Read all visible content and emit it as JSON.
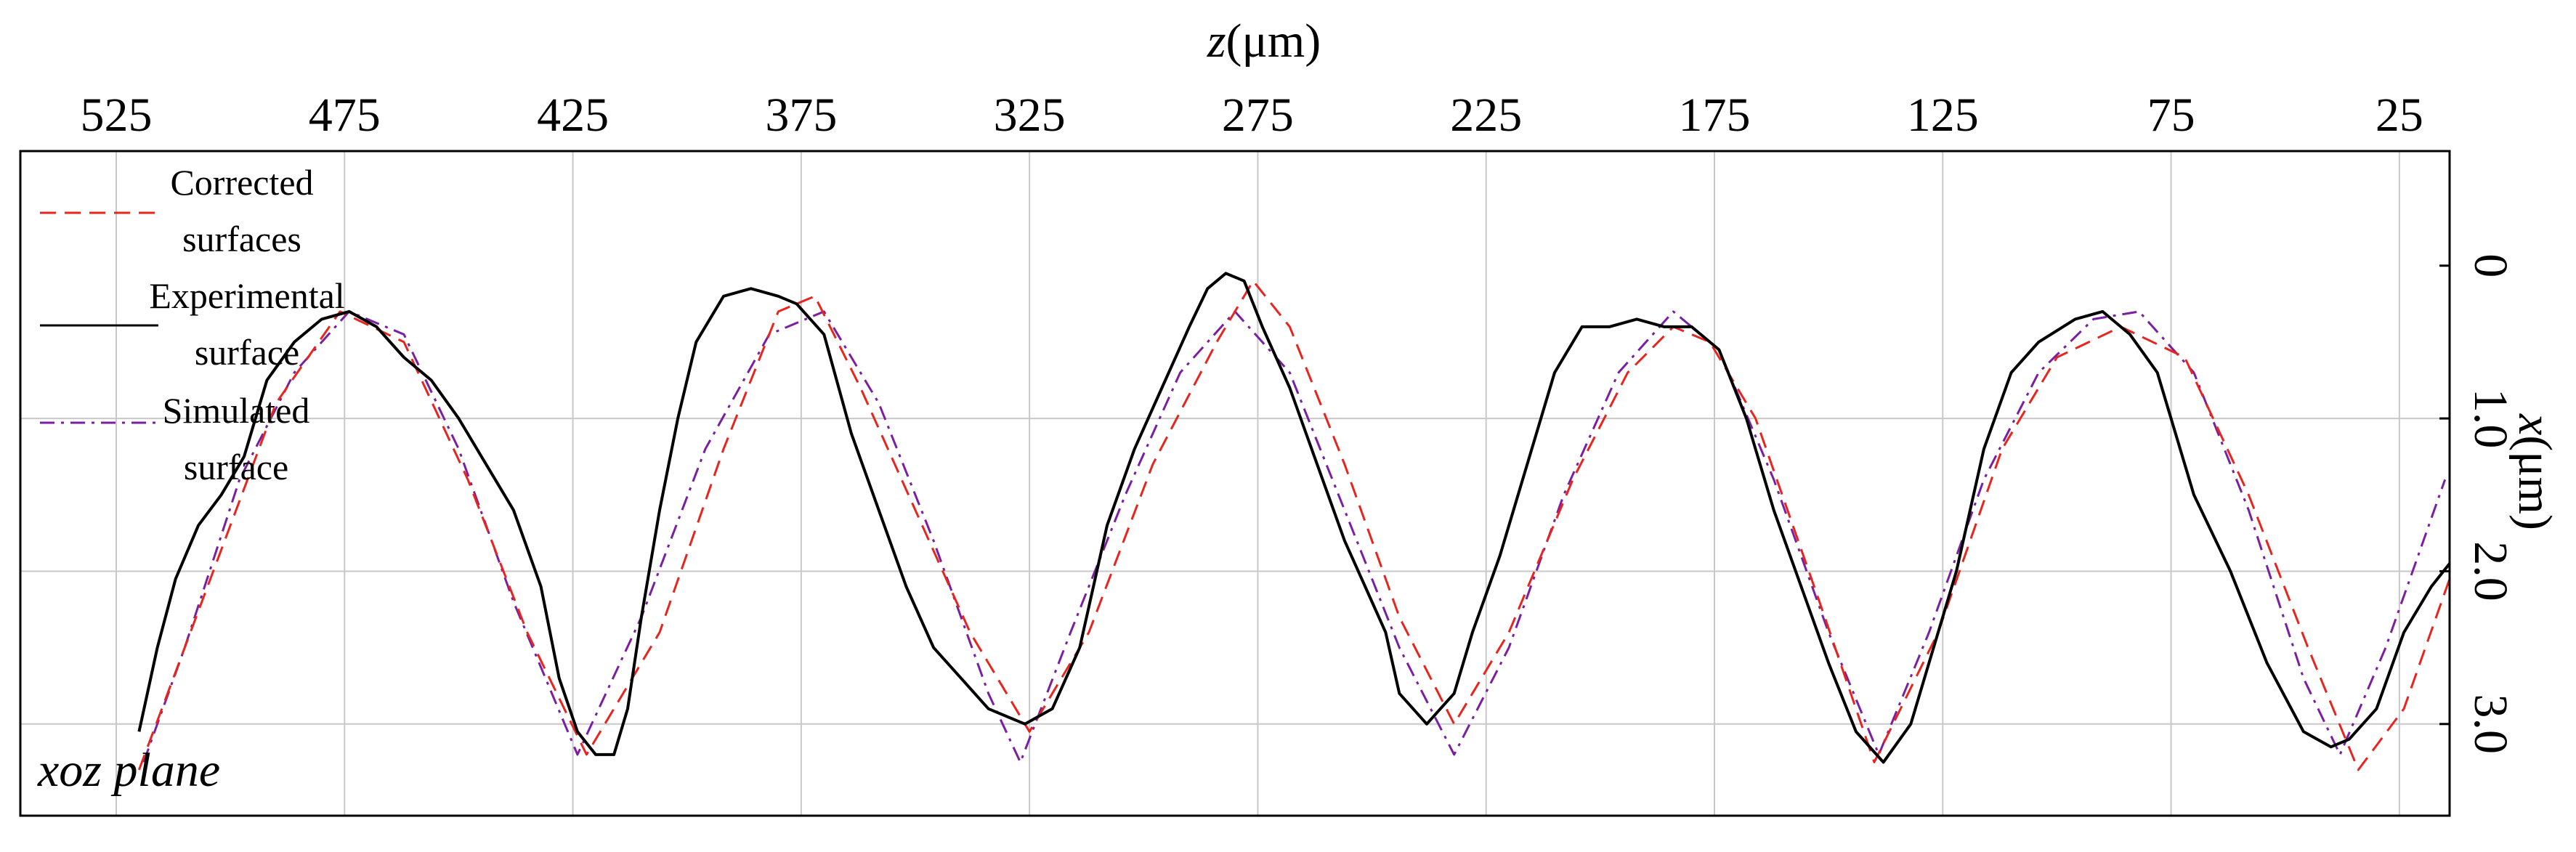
{
  "chart_data": {
    "type": "line",
    "x_axis": {
      "label_var": "z",
      "label_unit": "(μm)",
      "position": "top",
      "reversed": true,
      "ticks": [
        "525",
        "475",
        "425",
        "375",
        "325",
        "275",
        "225",
        "175",
        "125",
        "75",
        "25"
      ],
      "range": [
        546,
        14
      ]
    },
    "y_axis": {
      "label_var": "x",
      "label_unit": "(μm)",
      "position": "right",
      "inverted": true,
      "ticks": [
        "0",
        "1.0",
        "2.0",
        "3.0"
      ],
      "range": [
        -0.75,
        3.6
      ]
    },
    "grid": true,
    "plane_label": "xoz plane",
    "legend": {
      "placement": "top-left",
      "entries": [
        {
          "line1": "Corrected",
          "line2": "surfaces",
          "color": "#e8241d",
          "style": "dashed"
        },
        {
          "line1": "Experimental",
          "line2": "surface",
          "color": "#000000",
          "style": "solid"
        },
        {
          "line1": "Simulated",
          "line2": "surface",
          "color": "#7a1fa2",
          "style": "dashdot"
        }
      ]
    },
    "series": [
      {
        "name": "Corrected surfaces",
        "color": "#e8241d",
        "style": "dashed",
        "points": [
          [
            520,
            3.3
          ],
          [
            505,
            2.1
          ],
          [
            490,
            0.9
          ],
          [
            476,
            0.3
          ],
          [
            462,
            0.5
          ],
          [
            448,
            1.4
          ],
          [
            435,
            2.4
          ],
          [
            422,
            3.2
          ],
          [
            406,
            2.4
          ],
          [
            392,
            1.2
          ],
          [
            380,
            0.3
          ],
          [
            372,
            0.2
          ],
          [
            362,
            0.8
          ],
          [
            350,
            1.6
          ],
          [
            338,
            2.4
          ],
          [
            325,
            3.05
          ],
          [
            312,
            2.4
          ],
          [
            298,
            1.3
          ],
          [
            284,
            0.5
          ],
          [
            276,
            0.1
          ],
          [
            268,
            0.4
          ],
          [
            256,
            1.3
          ],
          [
            244,
            2.3
          ],
          [
            232,
            3.0
          ],
          [
            220,
            2.4
          ],
          [
            206,
            1.4
          ],
          [
            194,
            0.7
          ],
          [
            184,
            0.4
          ],
          [
            176,
            0.5
          ],
          [
            166,
            1.0
          ],
          [
            152,
            2.2
          ],
          [
            140,
            3.25
          ],
          [
            126,
            2.4
          ],
          [
            112,
            1.2
          ],
          [
            100,
            0.6
          ],
          [
            86,
            0.4
          ],
          [
            72,
            0.6
          ],
          [
            58,
            1.5
          ],
          [
            45,
            2.5
          ],
          [
            34,
            3.3
          ],
          [
            24,
            2.9
          ],
          [
            14,
            2.05
          ]
        ]
      },
      {
        "name": "Experimental surface",
        "color": "#000000",
        "style": "solid",
        "points": [
          [
            520,
            3.05
          ],
          [
            516,
            2.5
          ],
          [
            512,
            2.05
          ],
          [
            507,
            1.7
          ],
          [
            502,
            1.5
          ],
          [
            497,
            1.25
          ],
          [
            492,
            0.75
          ],
          [
            486,
            0.5
          ],
          [
            480,
            0.35
          ],
          [
            474,
            0.3
          ],
          [
            468,
            0.4
          ],
          [
            462,
            0.6
          ],
          [
            456,
            0.75
          ],
          [
            450,
            1.0
          ],
          [
            444,
            1.3
          ],
          [
            438,
            1.6
          ],
          [
            432,
            2.1
          ],
          [
            428,
            2.7
          ],
          [
            424,
            3.05
          ],
          [
            420,
            3.2
          ],
          [
            416,
            3.2
          ],
          [
            413,
            2.9
          ],
          [
            410,
            2.3
          ],
          [
            406,
            1.6
          ],
          [
            402,
            1.0
          ],
          [
            398,
            0.5
          ],
          [
            392,
            0.2
          ],
          [
            386,
            0.15
          ],
          [
            380,
            0.2
          ],
          [
            376,
            0.25
          ],
          [
            370,
            0.45
          ],
          [
            364,
            1.1
          ],
          [
            358,
            1.6
          ],
          [
            352,
            2.1
          ],
          [
            346,
            2.5
          ],
          [
            340,
            2.7
          ],
          [
            334,
            2.9
          ],
          [
            326,
            3.0
          ],
          [
            320,
            2.9
          ],
          [
            314,
            2.5
          ],
          [
            308,
            1.7
          ],
          [
            302,
            1.2
          ],
          [
            296,
            0.8
          ],
          [
            290,
            0.4
          ],
          [
            286,
            0.15
          ],
          [
            282,
            0.05
          ],
          [
            278,
            0.1
          ],
          [
            274,
            0.4
          ],
          [
            268,
            0.8
          ],
          [
            262,
            1.3
          ],
          [
            256,
            1.8
          ],
          [
            250,
            2.2
          ],
          [
            247,
            2.4
          ],
          [
            244,
            2.8
          ],
          [
            238,
            3.0
          ],
          [
            232,
            2.8
          ],
          [
            228,
            2.4
          ],
          [
            222,
            1.9
          ],
          [
            216,
            1.3
          ],
          [
            210,
            0.7
          ],
          [
            204,
            0.4
          ],
          [
            198,
            0.4
          ],
          [
            192,
            0.35
          ],
          [
            186,
            0.4
          ],
          [
            180,
            0.4
          ],
          [
            174,
            0.55
          ],
          [
            168,
            1.0
          ],
          [
            162,
            1.6
          ],
          [
            156,
            2.1
          ],
          [
            150,
            2.6
          ],
          [
            144,
            3.05
          ],
          [
            138,
            3.25
          ],
          [
            132,
            3.0
          ],
          [
            128,
            2.6
          ],
          [
            122,
            2.0
          ],
          [
            116,
            1.2
          ],
          [
            110,
            0.7
          ],
          [
            104,
            0.5
          ],
          [
            96,
            0.35
          ],
          [
            90,
            0.3
          ],
          [
            84,
            0.45
          ],
          [
            78,
            0.7
          ],
          [
            70,
            1.5
          ],
          [
            62,
            2.0
          ],
          [
            54,
            2.6
          ],
          [
            46,
            3.05
          ],
          [
            40,
            3.15
          ],
          [
            36,
            3.1
          ],
          [
            30,
            2.9
          ],
          [
            24,
            2.4
          ],
          [
            18,
            2.1
          ],
          [
            14,
            1.95
          ]
        ]
      },
      {
        "name": "Simulated surface",
        "color": "#7a1fa2",
        "style": "dashdot",
        "points": [
          [
            519,
            3.25
          ],
          [
            510,
            2.5
          ],
          [
            498,
            1.4
          ],
          [
            486,
            0.7
          ],
          [
            474,
            0.3
          ],
          [
            462,
            0.45
          ],
          [
            450,
            1.2
          ],
          [
            438,
            2.2
          ],
          [
            424,
            3.2
          ],
          [
            410,
            2.3
          ],
          [
            396,
            1.2
          ],
          [
            382,
            0.45
          ],
          [
            370,
            0.3
          ],
          [
            358,
            0.9
          ],
          [
            346,
            1.8
          ],
          [
            334,
            2.8
          ],
          [
            327,
            3.25
          ],
          [
            316,
            2.4
          ],
          [
            304,
            1.5
          ],
          [
            292,
            0.7
          ],
          [
            280,
            0.3
          ],
          [
            268,
            0.7
          ],
          [
            256,
            1.6
          ],
          [
            244,
            2.5
          ],
          [
            232,
            3.2
          ],
          [
            220,
            2.5
          ],
          [
            208,
            1.5
          ],
          [
            196,
            0.7
          ],
          [
            184,
            0.3
          ],
          [
            174,
            0.55
          ],
          [
            162,
            1.4
          ],
          [
            150,
            2.4
          ],
          [
            139,
            3.2
          ],
          [
            128,
            2.4
          ],
          [
            116,
            1.4
          ],
          [
            104,
            0.7
          ],
          [
            92,
            0.35
          ],
          [
            82,
            0.3
          ],
          [
            70,
            0.7
          ],
          [
            58,
            1.6
          ],
          [
            46,
            2.7
          ],
          [
            38,
            3.2
          ],
          [
            28,
            2.5
          ],
          [
            15,
            1.4
          ]
        ]
      }
    ]
  }
}
